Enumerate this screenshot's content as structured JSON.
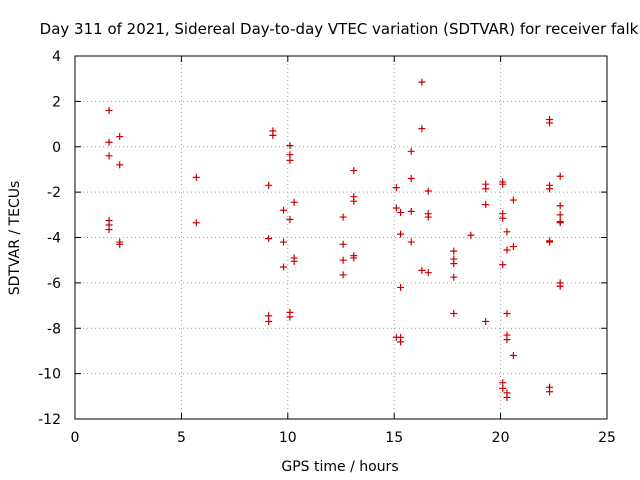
{
  "chart_data": {
    "type": "scatter",
    "title": "Day 311 of 2021, Sidereal Day-to-day VTEC variation (SDTVAR) for receiver falk",
    "xlabel": "GPS time / hours",
    "ylabel": "SDTVAR / TECUs",
    "xlim": [
      0,
      25
    ],
    "ylim": [
      -12,
      4
    ],
    "xticks": [
      "0",
      "5",
      "10",
      "15",
      "20",
      "25"
    ],
    "yticks": [
      "-12",
      "-10",
      "-8",
      "-6",
      "-4",
      "-2",
      "0",
      "2",
      "4"
    ],
    "grid": true,
    "marker": "+",
    "colors": {
      "points": "#cc0000",
      "axes": "#000000",
      "grid": "#a0a0a0"
    },
    "series": [
      {
        "name": "SDTVAR",
        "points": [
          [
            1.6,
            1.6
          ],
          [
            1.6,
            0.2
          ],
          [
            1.6,
            -0.4
          ],
          [
            1.6,
            -3.25
          ],
          [
            1.6,
            -3.45
          ],
          [
            1.6,
            -3.65
          ],
          [
            2.1,
            0.45
          ],
          [
            2.1,
            -0.8
          ],
          [
            2.1,
            -4.2
          ],
          [
            2.1,
            -4.3
          ],
          [
            5.7,
            -1.35
          ],
          [
            5.7,
            -3.35
          ],
          [
            9.1,
            -1.7
          ],
          [
            9.1,
            -4.05
          ],
          [
            9.1,
            -7.45
          ],
          [
            9.1,
            -7.7
          ],
          [
            9.3,
            0.7
          ],
          [
            9.3,
            0.5
          ],
          [
            9.8,
            -2.8
          ],
          [
            9.8,
            -4.2
          ],
          [
            9.8,
            -5.3
          ],
          [
            10.1,
            0.05
          ],
          [
            10.1,
            -0.35
          ],
          [
            10.1,
            -0.6
          ],
          [
            10.1,
            -3.2
          ],
          [
            10.1,
            -7.3
          ],
          [
            10.1,
            -7.5
          ],
          [
            10.3,
            -2.45
          ],
          [
            10.3,
            -4.9
          ],
          [
            10.3,
            -5.05
          ],
          [
            12.6,
            -3.1
          ],
          [
            12.6,
            -4.3
          ],
          [
            12.6,
            -5.0
          ],
          [
            12.6,
            -5.65
          ],
          [
            13.1,
            -1.05
          ],
          [
            13.1,
            -2.2
          ],
          [
            13.1,
            -2.4
          ],
          [
            13.1,
            -4.8
          ],
          [
            13.1,
            -4.9
          ],
          [
            15.1,
            -1.8
          ],
          [
            15.1,
            -2.7
          ],
          [
            15.1,
            -8.4
          ],
          [
            15.3,
            -2.9
          ],
          [
            15.3,
            -3.85
          ],
          [
            15.3,
            -6.2
          ],
          [
            15.3,
            -8.4
          ],
          [
            15.3,
            -8.6
          ],
          [
            15.8,
            -0.2
          ],
          [
            15.8,
            -1.4
          ],
          [
            15.8,
            -2.85
          ],
          [
            15.8,
            -4.2
          ],
          [
            16.3,
            2.85
          ],
          [
            16.3,
            0.8
          ],
          [
            16.3,
            -5.45
          ],
          [
            16.6,
            -1.95
          ],
          [
            16.6,
            -2.95
          ],
          [
            16.6,
            -3.1
          ],
          [
            16.6,
            -5.55
          ],
          [
            17.8,
            -4.6
          ],
          [
            17.8,
            -4.95
          ],
          [
            17.8,
            -5.15
          ],
          [
            17.8,
            -5.75
          ],
          [
            17.8,
            -7.35
          ],
          [
            18.6,
            -3.9
          ],
          [
            19.3,
            -1.65
          ],
          [
            19.3,
            -1.85
          ],
          [
            19.3,
            -2.55
          ],
          [
            19.3,
            -7.7
          ],
          [
            20.1,
            -1.55
          ],
          [
            20.1,
            -1.65
          ],
          [
            20.1,
            -2.95
          ],
          [
            20.1,
            -3.15
          ],
          [
            20.1,
            -5.2
          ],
          [
            20.1,
            -10.4
          ],
          [
            20.1,
            -10.65
          ],
          [
            20.3,
            -3.75
          ],
          [
            20.3,
            -4.55
          ],
          [
            20.3,
            -7.35
          ],
          [
            20.3,
            -8.3
          ],
          [
            20.3,
            -8.5
          ],
          [
            20.3,
            -10.85
          ],
          [
            20.3,
            -11.05
          ],
          [
            20.6,
            -2.35
          ],
          [
            20.6,
            -4.4
          ],
          [
            20.6,
            -9.2
          ],
          [
            22.3,
            1.2
          ],
          [
            22.3,
            1.05
          ],
          [
            22.3,
            -1.7
          ],
          [
            22.3,
            -1.85
          ],
          [
            22.3,
            -4.15
          ],
          [
            22.3,
            -4.2
          ],
          [
            22.3,
            -10.6
          ],
          [
            22.3,
            -10.8
          ],
          [
            22.8,
            -1.3
          ],
          [
            22.8,
            -2.6
          ],
          [
            22.8,
            -3.0
          ],
          [
            22.8,
            -3.3
          ],
          [
            22.8,
            -3.35
          ],
          [
            22.8,
            -6.0
          ],
          [
            22.8,
            -6.15
          ]
        ]
      }
    ]
  }
}
